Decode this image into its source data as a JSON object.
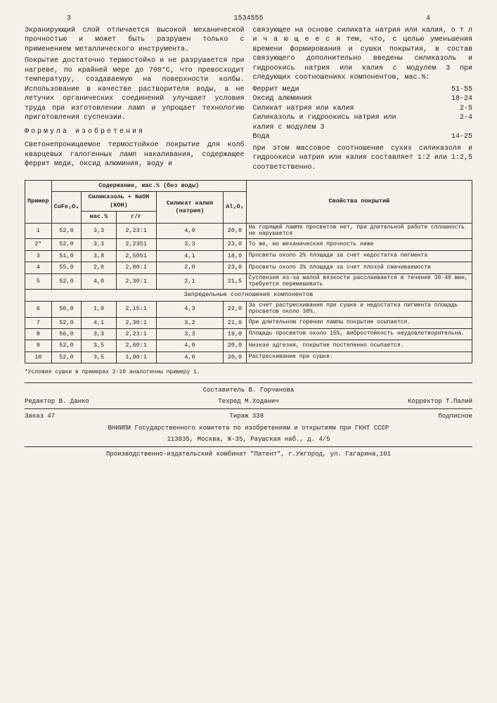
{
  "page_left": "3",
  "patent_number": "1534555",
  "page_right": "4",
  "left_col": {
    "p1": "Экранирующий слой отличается высокой механической прочностью и может быть разрушен только с применением металлического инструмента.",
    "p2": "Покрытие достаточно термостойко и не разрушается при нагреве, по крайней мере до 700°С, что превосходит температуру, создаваемую на поверхности колбы. Использование в качестве растворителя воды, а не летучих органических соединений улучшает условия труда при изготовлении ламп и упрощает технологию приготовления суспензии.",
    "formula_title": "Формула изобретения",
    "p3": "Светонепроницаемое термостойкое покрытие для колб кварцевых галогенных ламп накаливания, содержащее феррит меди, оксид алюминия, воду и"
  },
  "right_col": {
    "p1": "связующее на основе силиката натрия или калия, о т л и ч а ю щ е е с я тем, что, с целью уменьшения времени формирования и сушки покрытия, в состав связующего дополнительно введены силиказоль и гидроокись натрия или калия с модулем 3 при следующих соотношениях компонентов, мас.%:",
    "components": [
      {
        "name": "Феррит меди",
        "val": "51-55"
      },
      {
        "name": "Оксид алюминия",
        "val": "18-24"
      },
      {
        "name": "Силикат натрия или калия",
        "val": "2-5"
      },
      {
        "name": "Силиказоль и гидроокись натрия или калия с модулем 3",
        "val": "2-4"
      },
      {
        "name": "Вода",
        "val": "14-25"
      }
    ],
    "p2": "при этом массовое соотношение сухих силиказоля и гидроокиси натрия или калия составляет 1:2 или 1:2,5 соответственно."
  },
  "table": {
    "headers": {
      "h1": "Пример",
      "h2": "Содержание, мас.% (без воды)",
      "h3": "Свойства покрытий",
      "sub1": "CuFe₂O₄",
      "sub2": "Силиказоль + NaOH (KOH)",
      "sub3": "Силикат калия (натрия)",
      "sub4": "Al₂O₃",
      "sub2a": "мас.%",
      "sub2b": "г/г"
    },
    "rows": [
      {
        "n": "1",
        "c1": "52,0",
        "c2": "3,3",
        "c3": "2,23:1",
        "c4": "4,0",
        "c5": "20,0",
        "d": "На горящей лампе просветов нет, при длительной работе сплошность не нарушается"
      },
      {
        "n": "2*",
        "c1": "52,0",
        "c2": "3,3",
        "c3": "2,2351",
        "c4": "3,3",
        "c5": "23,0",
        "d": "То же, но механическая прочность ниже"
      },
      {
        "n": "3",
        "c1": "51,0",
        "c2": "3,8",
        "c3": "2,5051",
        "c4": "4,1",
        "c5": "18,0",
        "d": "Просветы около 2% площади за счет недостатка пигмента"
      },
      {
        "n": "4",
        "c1": "55,0",
        "c2": "2,0",
        "c3": "2,00:1",
        "c4": "2,0",
        "c5": "23,0",
        "d": "Просветы около 3% площади за счет плохой смачиваемости"
      },
      {
        "n": "5",
        "c1": "52,0",
        "c2": "4,0",
        "c3": "2,30:1",
        "c4": "2,1",
        "c5": "21,5",
        "d": "Суспензия из-за малой вязкости расслаивается в течение 30-40 мин, требуется перемешивать"
      }
    ],
    "section": "Запредельные соотношения компонентов",
    "rows2": [
      {
        "n": "6",
        "c1": "50,0",
        "c2": "1,9",
        "c3": "2,15:1",
        "c4": "4,3",
        "c5": "22,0",
        "d": "За счет растрескивания при сушке и недостатка пигмента площадь просветов около 30%."
      },
      {
        "n": "7",
        "c1": "52,0",
        "c2": "4,1",
        "c3": "2,30:1",
        "c4": "3,2",
        "c5": "21,0",
        "d": "При длительном горении лампы покрытие осыпается."
      },
      {
        "n": "8",
        "c1": "56,0",
        "c2": "3,3",
        "c3": "2,23:1",
        "c4": "3,3",
        "c5": "19,0",
        "d": "Площадь просветов около 15%, вибростойкость неудовлетворительна."
      },
      {
        "n": "9",
        "c1": "52,0",
        "c2": "3,5",
        "c3": "2,60:1",
        "c4": "4,0",
        "c5": "20,0",
        "d": "Низкая адгезия, покрытие постепенно осыпается."
      },
      {
        "n": "10",
        "c1": "52,0",
        "c2": "3,5",
        "c3": "1,90:1",
        "c4": "4,0",
        "c5": "20,0",
        "d": "Растрескивание при сушке."
      }
    ],
    "footnote": "*Условия сушки в примерах 2-10 аналогичны примеру 1."
  },
  "credits": {
    "compiler": "Составитель В. Горчанова",
    "editor": "Редактор В. Данко",
    "tech": "Техред М.Ходанич",
    "corrector": "Корректор Т.Палий",
    "order": "Заказ 47",
    "circ": "Тираж 338",
    "sub": "Подписное",
    "org": "ВНИИПИ Государственного комитета по изобретениям и открытиям при ГКНТ СССР",
    "addr1": "113035, Москва, Ж-35, Раушская наб., д. 4/5",
    "addr2": "Производственно-издательский комбинат \"Патент\", г.Ужгород, ул. Гагарина,101"
  }
}
